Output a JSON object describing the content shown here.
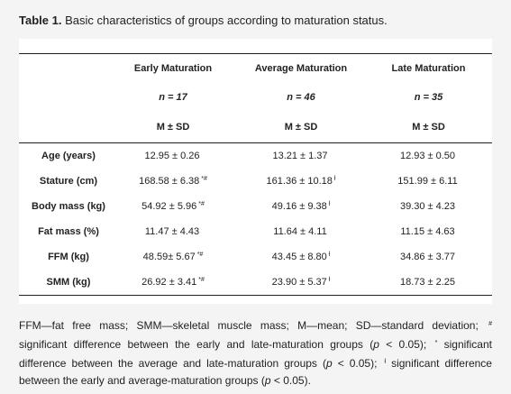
{
  "caption": {
    "label": "Table 1.",
    "text": "Basic characteristics of groups according to maturation status."
  },
  "table": {
    "groups": [
      {
        "name": "Early Maturation",
        "n_label": "n",
        "n_value": "= 17",
        "stat": "M ± SD"
      },
      {
        "name": "Average Maturation",
        "n_label": "n",
        "n_value": "= 46",
        "stat": "M ± SD"
      },
      {
        "name": "Late Maturation",
        "n_label": "n",
        "n_value": "= 35",
        "stat": "M ± SD"
      }
    ],
    "rows": [
      {
        "label": "Age (years)",
        "cells": [
          {
            "value": "12.95 ± 0.26",
            "mark": ""
          },
          {
            "value": "13.21 ± 1.37",
            "mark": ""
          },
          {
            "value": "12.93 ± 0.50",
            "mark": ""
          }
        ]
      },
      {
        "label": "Stature (cm)",
        "cells": [
          {
            "value": "168.58 ± 6.38",
            "mark": "*#"
          },
          {
            "value": "161.36 ± 10.18",
            "mark": "ƚ"
          },
          {
            "value": "151.99 ± 6.11",
            "mark": ""
          }
        ]
      },
      {
        "label": "Body mass (kg)",
        "cells": [
          {
            "value": "54.92 ± 5.96",
            "mark": "*#"
          },
          {
            "value": "49.16 ± 9.38",
            "mark": "ƚ"
          },
          {
            "value": "39.30 ± 4.23",
            "mark": ""
          }
        ]
      },
      {
        "label": "Fat mass (%)",
        "cells": [
          {
            "value": "11.47 ± 4.43",
            "mark": ""
          },
          {
            "value": "11.64 ± 4.11",
            "mark": ""
          },
          {
            "value": "11.15 ± 4.63",
            "mark": ""
          }
        ]
      },
      {
        "label": "FFM (kg)",
        "cells": [
          {
            "value": "48.59± 5.67",
            "mark": "*#"
          },
          {
            "value": "43.45 ± 8.80",
            "mark": "ƚ"
          },
          {
            "value": "34.86 ± 3.77",
            "mark": ""
          }
        ]
      },
      {
        "label": "SMM (kg)",
        "cells": [
          {
            "value": "26.92 ± 3.41",
            "mark": "*#"
          },
          {
            "value": "23.90 ± 5.37",
            "mark": "ƚ"
          },
          {
            "value": "18.73 ± 2.25",
            "mark": ""
          }
        ]
      }
    ]
  },
  "footnote": {
    "abbrev": "FFM—fat free mass; SMM—skeletal muscle mass; M—mean; SD—standard deviation;",
    "sym_hash": "#",
    "hash_text": "significant difference between the early and late-maturation groups (",
    "p_label": "p",
    "p_text": "< 0.05);",
    "sym_star": "*",
    "star_text": "significant difference between the average and late-maturation groups (",
    "sym_dagger": "ƚ",
    "dagger_text": "significant difference between the early and average-maturation groups (",
    "p_text_end": "< 0.05)."
  }
}
